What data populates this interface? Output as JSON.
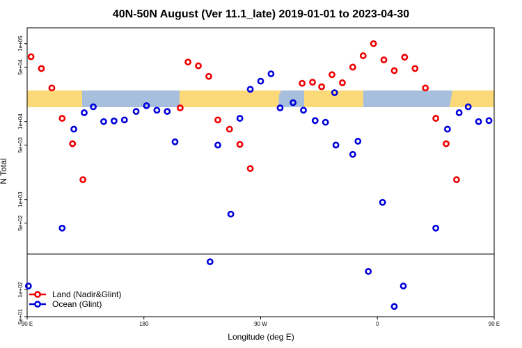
{
  "chart_data": {
    "type": "scatter",
    "title": "40N-50N August (Ver 11.1_late)   2019-01-01 to 2023-04-30",
    "xlabel": "Longitude (deg E)",
    "ylabel": "N Total",
    "x_axis": {
      "range": [
        0,
        360
      ],
      "direction": "eastward from 90 E",
      "ticks": [
        {
          "value": 0,
          "label": "90 E"
        },
        {
          "value": 90,
          "label": "180"
        },
        {
          "value": 180,
          "label": "90 W"
        },
        {
          "value": 270,
          "label": "0"
        },
        {
          "value": 360,
          "label": "90 E"
        },
        {
          "value": 450,
          "label": "180"
        }
      ]
    },
    "y_axis": {
      "scale": "log",
      "upper_panel": {
        "range": [
          200,
          150000
        ],
        "ticks": [
          {
            "value": 500,
            "label": "5e+02"
          },
          {
            "value": 1000,
            "label": "1e+03"
          },
          {
            "value": 5000,
            "label": "5e+03"
          },
          {
            "value": 10000,
            "label": "1e+04"
          },
          {
            "value": 50000,
            "label": "5e+04"
          },
          {
            "value": 100000,
            "label": "1e+05"
          }
        ]
      },
      "lower_panel": {
        "range": [
          50,
          250
        ],
        "ticks": [
          {
            "value": 50,
            "label": "5e+01"
          },
          {
            "value": 100,
            "label": "1e+02"
          }
        ]
      },
      "panel_break": 230
    },
    "legend": {
      "placement": "bottom-left",
      "entries": [
        {
          "label": "Land (Nadir&Glint)",
          "color": "#ee0000"
        },
        {
          "label": "Ocean (Glint)",
          "color": "#0000dd"
        }
      ]
    },
    "series": [
      {
        "name": "Land (Nadir&Glint)",
        "color": "#ee0000",
        "points": [
          {
            "x": 3,
            "y": 68000
          },
          {
            "x": 11,
            "y": 48000
          },
          {
            "x": 19,
            "y": 27000
          },
          {
            "x": 27,
            "y": 11000
          },
          {
            "x": 35,
            "y": 5200
          },
          {
            "x": 43,
            "y": 1800
          },
          {
            "x": 118,
            "y": 15000
          },
          {
            "x": 124,
            "y": 58000
          },
          {
            "x": 132,
            "y": 52000
          },
          {
            "x": 140,
            "y": 38000
          },
          {
            "x": 147,
            "y": 10500
          },
          {
            "x": 156,
            "y": 8000
          },
          {
            "x": 164,
            "y": 5100
          },
          {
            "x": 172,
            "y": 2500
          },
          {
            "x": 212,
            "y": 31000
          },
          {
            "x": 220,
            "y": 32000
          },
          {
            "x": 227,
            "y": 28000
          },
          {
            "x": 235,
            "y": 40000
          },
          {
            "x": 243,
            "y": 31500
          },
          {
            "x": 251,
            "y": 50000
          },
          {
            "x": 259,
            "y": 70000
          },
          {
            "x": 267,
            "y": 100000
          },
          {
            "x": 275,
            "y": 62000
          },
          {
            "x": 283,
            "y": 45000
          },
          {
            "x": 291,
            "y": 67000
          },
          {
            "x": 299,
            "y": 48000
          },
          {
            "x": 307,
            "y": 27000
          },
          {
            "x": 315,
            "y": 11000
          },
          {
            "x": 323,
            "y": 5200
          },
          {
            "x": 331,
            "y": 1800
          }
        ]
      },
      {
        "name": "Ocean (Glint)",
        "color": "#0000dd",
        "points": [
          {
            "x": 1,
            "y": 110
          },
          {
            "x": 27,
            "y": 430
          },
          {
            "x": 36,
            "y": 8000
          },
          {
            "x": 44,
            "y": 13000
          },
          {
            "x": 51,
            "y": 15500
          },
          {
            "x": 59,
            "y": 10000
          },
          {
            "x": 67,
            "y": 10200
          },
          {
            "x": 75,
            "y": 10500
          },
          {
            "x": 84,
            "y": 13500
          },
          {
            "x": 92,
            "y": 16000
          },
          {
            "x": 100,
            "y": 14000
          },
          {
            "x": 108,
            "y": 13500
          },
          {
            "x": 114,
            "y": 5500
          },
          {
            "x": 141,
            "y": 205
          },
          {
            "x": 147,
            "y": 5000
          },
          {
            "x": 157,
            "y": 650
          },
          {
            "x": 164,
            "y": 11000
          },
          {
            "x": 172,
            "y": 26000
          },
          {
            "x": 180,
            "y": 33000
          },
          {
            "x": 188,
            "y": 41000
          },
          {
            "x": 195,
            "y": 15000
          },
          {
            "x": 205,
            "y": 17500
          },
          {
            "x": 213,
            "y": 14000
          },
          {
            "x": 222,
            "y": 10300
          },
          {
            "x": 230,
            "y": 9800
          },
          {
            "x": 237,
            "y": 23500
          },
          {
            "x": 238,
            "y": 5000
          },
          {
            "x": 251,
            "y": 3800
          },
          {
            "x": 255,
            "y": 5600
          },
          {
            "x": 263,
            "y": 160
          },
          {
            "x": 274,
            "y": 920
          },
          {
            "x": 283,
            "y": 65
          },
          {
            "x": 290,
            "y": 110
          },
          {
            "x": 315,
            "y": 430
          },
          {
            "x": 324,
            "y": 8000
          },
          {
            "x": 333,
            "y": 13000
          },
          {
            "x": 340,
            "y": 15500
          },
          {
            "x": 348,
            "y": 10000
          },
          {
            "x": 356,
            "y": 10300
          }
        ]
      }
    ]
  }
}
